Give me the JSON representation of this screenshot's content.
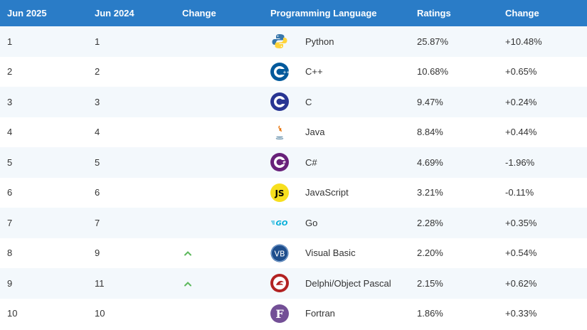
{
  "table": {
    "headers": [
      "Jun 2025",
      "Jun 2024",
      "Change",
      "Programming Language",
      "Ratings",
      "Change"
    ],
    "rows": [
      {
        "jun2025": "1",
        "jun2024": "1",
        "trend": "",
        "language": "Python",
        "rating": "25.87%",
        "change": "+10.48%",
        "logo": "python-logo-icon"
      },
      {
        "jun2025": "2",
        "jun2024": "2",
        "trend": "",
        "language": "C++",
        "rating": "10.68%",
        "change": "+0.65%",
        "logo": "cpp-logo-icon"
      },
      {
        "jun2025": "3",
        "jun2024": "3",
        "trend": "",
        "language": "C",
        "rating": "9.47%",
        "change": "+0.24%",
        "logo": "c-logo-icon"
      },
      {
        "jun2025": "4",
        "jun2024": "4",
        "trend": "",
        "language": "Java",
        "rating": "8.84%",
        "change": "+0.44%",
        "logo": "java-logo-icon"
      },
      {
        "jun2025": "5",
        "jun2024": "5",
        "trend": "",
        "language": "C#",
        "rating": "4.69%",
        "change": "-1.96%",
        "logo": "csharp-logo-icon"
      },
      {
        "jun2025": "6",
        "jun2024": "6",
        "trend": "",
        "language": "JavaScript",
        "rating": "3.21%",
        "change": "-0.11%",
        "logo": "javascript-logo-icon"
      },
      {
        "jun2025": "7",
        "jun2024": "7",
        "trend": "",
        "language": "Go",
        "rating": "2.28%",
        "change": "+0.35%",
        "logo": "go-logo-icon"
      },
      {
        "jun2025": "8",
        "jun2024": "9",
        "trend": "up",
        "language": "Visual Basic",
        "rating": "2.20%",
        "change": "+0.54%",
        "logo": "visual-basic-logo-icon"
      },
      {
        "jun2025": "9",
        "jun2024": "11",
        "trend": "up",
        "language": "Delphi/Object Pascal",
        "rating": "2.15%",
        "change": "+0.62%",
        "logo": "delphi-logo-icon"
      },
      {
        "jun2025": "10",
        "jun2024": "10",
        "trend": "",
        "language": "Fortran",
        "rating": "1.86%",
        "change": "+0.33%",
        "logo": "fortran-logo-icon"
      }
    ]
  },
  "colors": {
    "header_bg": "#2a7cc7",
    "row_alt_bg": "#f3f8fc",
    "trend_up": "#5cb85c"
  }
}
